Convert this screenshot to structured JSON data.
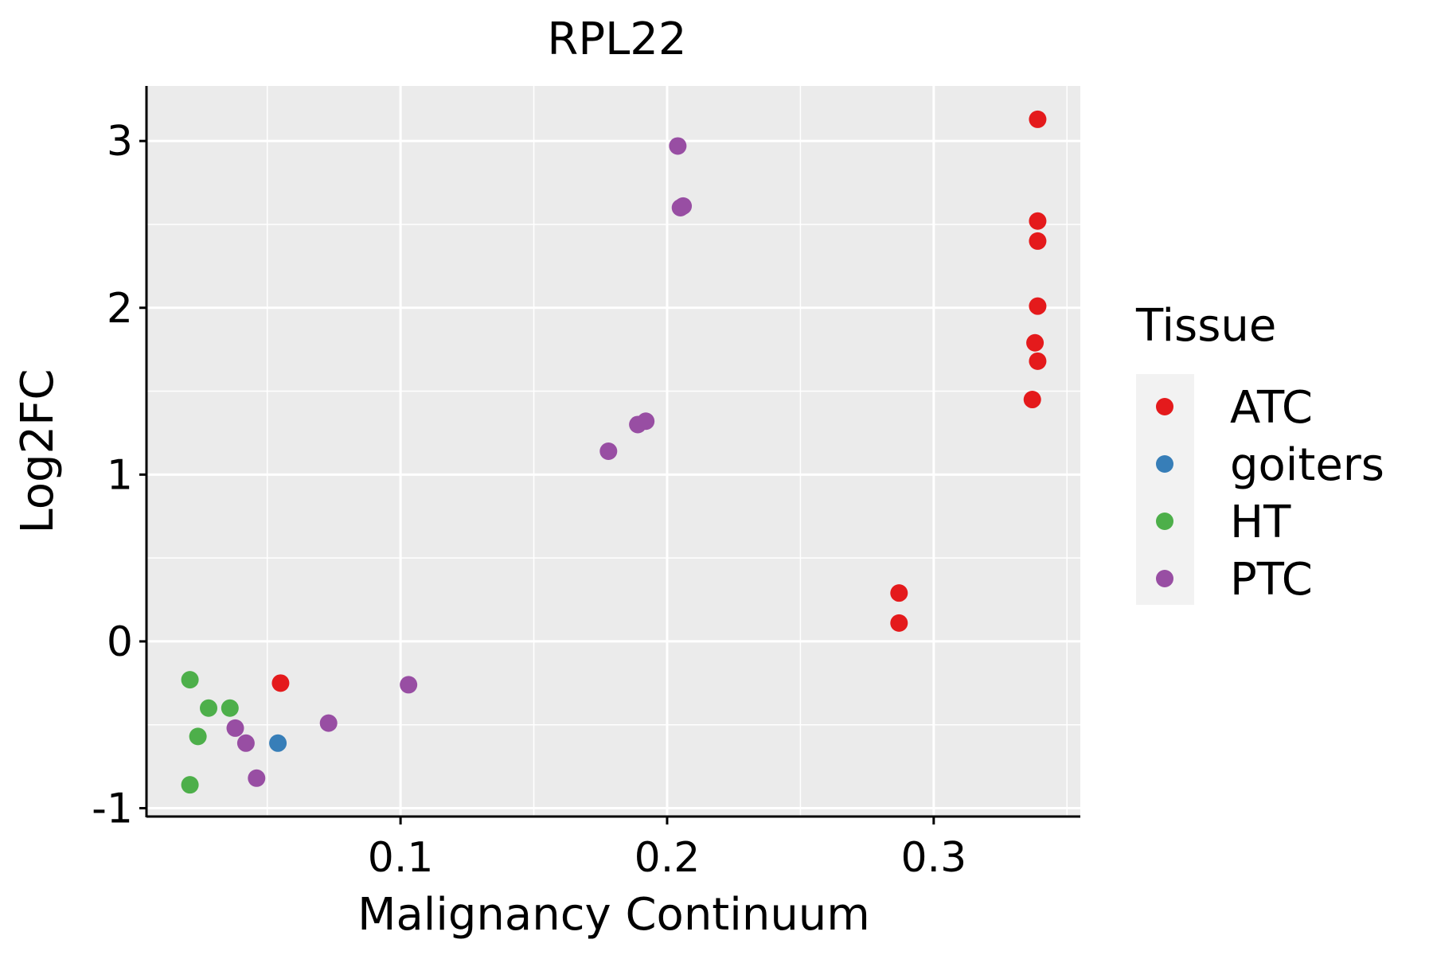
{
  "chart_data": {
    "type": "scatter",
    "title": "RPL22",
    "xlabel": "Malignancy Continuum",
    "ylabel": "Log2FC",
    "xlim": [
      0.005,
      0.355
    ],
    "ylim": [
      -1.05,
      3.33
    ],
    "x_ticks": [
      0.1,
      0.2,
      0.3
    ],
    "x_tick_labels": [
      "0.1",
      "0.2",
      "0.3"
    ],
    "x_minor_ticks": [
      0.05,
      0.15,
      0.25,
      0.35
    ],
    "y_ticks": [
      -1,
      0,
      1,
      2,
      3
    ],
    "y_tick_labels": [
      "-1",
      "0",
      "1",
      "2",
      "3"
    ],
    "y_minor_ticks": [
      -0.5,
      0.5,
      1.5,
      2.5
    ],
    "grid": true,
    "legend": {
      "title": "Tissue",
      "position": "right",
      "entries": [
        {
          "name": "ATC",
          "color": "#E41A1C"
        },
        {
          "name": "goiters",
          "color": "#377EB8"
        },
        {
          "name": "HT",
          "color": "#4DAF4A"
        },
        {
          "name": "PTC",
          "color": "#984EA3"
        }
      ]
    },
    "series": [
      {
        "name": "ATC",
        "color": "#E41A1C",
        "points": [
          [
            0.339,
            3.13
          ],
          [
            0.339,
            2.52
          ],
          [
            0.339,
            2.4
          ],
          [
            0.339,
            2.01
          ],
          [
            0.338,
            1.79
          ],
          [
            0.339,
            1.68
          ],
          [
            0.337,
            1.45
          ],
          [
            0.287,
            0.29
          ],
          [
            0.287,
            0.11
          ],
          [
            0.055,
            -0.25
          ]
        ]
      },
      {
        "name": "goiters",
        "color": "#377EB8",
        "points": [
          [
            0.054,
            -0.61
          ]
        ]
      },
      {
        "name": "HT",
        "color": "#4DAF4A",
        "points": [
          [
            0.021,
            -0.23
          ],
          [
            0.028,
            -0.4
          ],
          [
            0.036,
            -0.4
          ],
          [
            0.024,
            -0.57
          ],
          [
            0.021,
            -0.86
          ]
        ]
      },
      {
        "name": "PTC",
        "color": "#984EA3",
        "points": [
          [
            0.204,
            2.97
          ],
          [
            0.205,
            2.6
          ],
          [
            0.206,
            2.61
          ],
          [
            0.192,
            1.32
          ],
          [
            0.189,
            1.3
          ],
          [
            0.178,
            1.14
          ],
          [
            0.103,
            -0.26
          ],
          [
            0.073,
            -0.49
          ],
          [
            0.038,
            -0.52
          ],
          [
            0.042,
            -0.61
          ],
          [
            0.046,
            -0.82
          ]
        ]
      }
    ]
  }
}
